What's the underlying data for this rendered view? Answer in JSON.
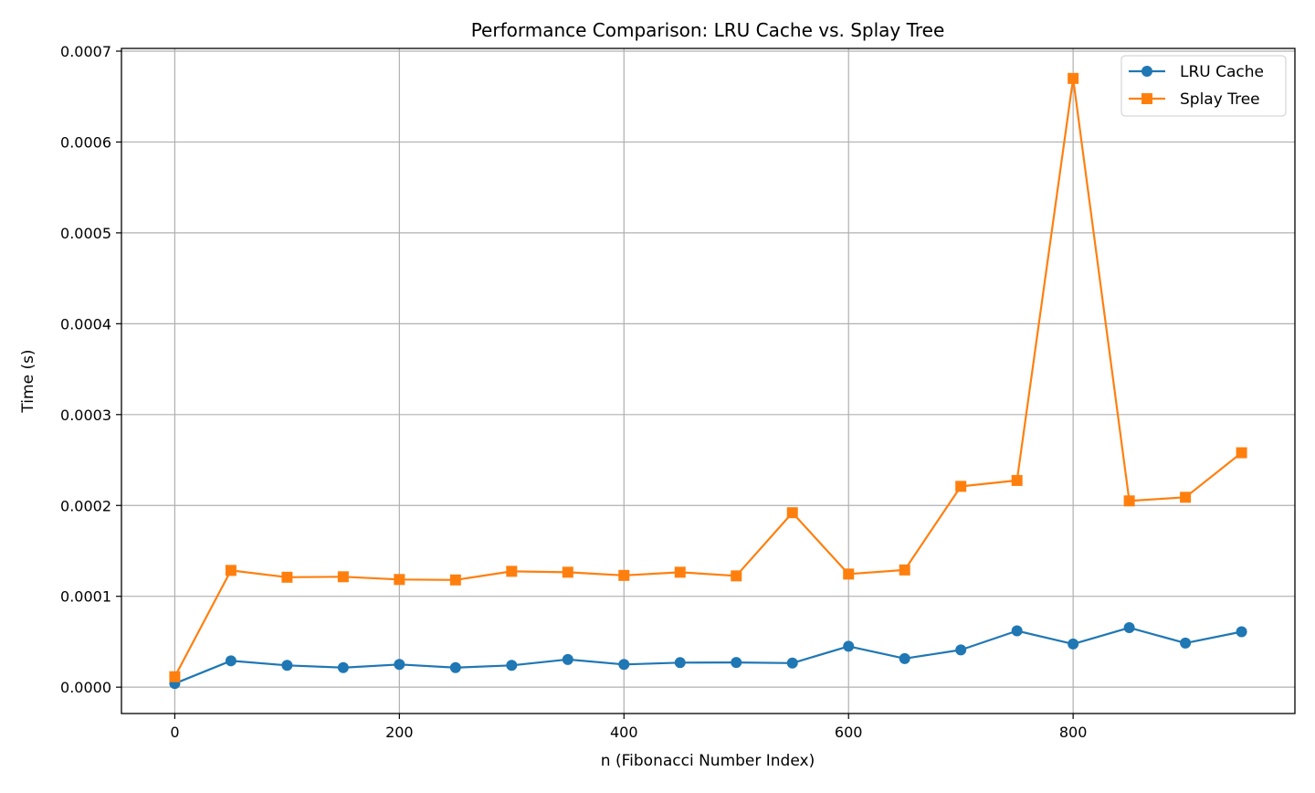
{
  "chart_data": {
    "type": "line",
    "title": "Performance Comparison: LRU Cache vs. Splay Tree",
    "xlabel": "n (Fibonacci Number Index)",
    "ylabel": "Time (s)",
    "xlim": [
      -47.5,
      997.5
    ],
    "ylim": [
      -2.9e-05,
      0.000703
    ],
    "xticks": [
      0,
      200,
      400,
      600,
      800
    ],
    "xtick_labels": [
      "0",
      "200",
      "400",
      "600",
      "800"
    ],
    "yticks": [
      0,
      0.0001,
      0.0002,
      0.0003,
      0.0004,
      0.0005,
      0.0006,
      0.0007
    ],
    "ytick_labels": [
      "0.0000",
      "0.0001",
      "0.0002",
      "0.0003",
      "0.0004",
      "0.0005",
      "0.0006",
      "0.0007"
    ],
    "grid": true,
    "legend_position": "top-right",
    "x": [
      0,
      50,
      100,
      150,
      200,
      250,
      300,
      350,
      400,
      450,
      500,
      550,
      600,
      650,
      700,
      750,
      800,
      850,
      900,
      950
    ],
    "series": [
      {
        "name": "LRU Cache",
        "color": "#1f77b4",
        "marker": "circle",
        "values": [
          4e-06,
          2.9e-05,
          2.4e-05,
          2.15e-05,
          2.5e-05,
          2.15e-05,
          2.4e-05,
          3.05e-05,
          2.5e-05,
          2.7e-05,
          2.72e-05,
          2.65e-05,
          4.5e-05,
          3.15e-05,
          4.1e-05,
          6.2e-05,
          4.75e-05,
          6.55e-05,
          4.85e-05,
          6.1e-05
        ]
      },
      {
        "name": "Splay Tree",
        "color": "#ff7f0e",
        "marker": "square",
        "values": [
          1.15e-05,
          0.0001285,
          0.000121,
          0.0001215,
          0.0001185,
          0.000118,
          0.0001275,
          0.0001265,
          0.000123,
          0.0001265,
          0.0001225,
          0.000192,
          0.0001245,
          0.000129,
          0.000221,
          0.0002275,
          0.00067,
          0.000205,
          0.000209,
          0.000258
        ]
      }
    ]
  }
}
